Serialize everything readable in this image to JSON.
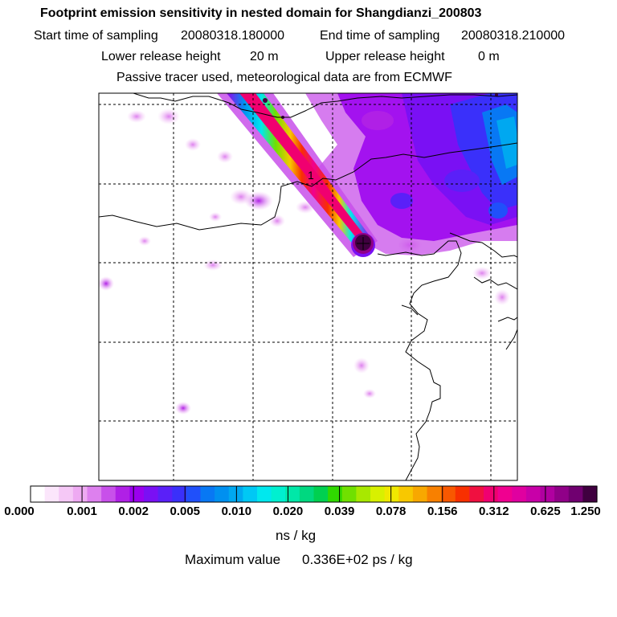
{
  "title": "Footprint emission sensitivity in nested domain for Shangdianzi_200803",
  "start_label": "Start time of sampling",
  "start_value": "20080318.180000",
  "end_label": "End time of sampling",
  "end_value": "20080318.210000",
  "lower_label": "Lower release height",
  "lower_value": "20 m",
  "upper_label": "Upper release height",
  "upper_value": "0 m",
  "tracer_note": "Passive tracer used, meteorological data are from ECMWF",
  "release_marker": "1",
  "colorbar": {
    "tick_labels": [
      "0.000",
      "0.001",
      "0.002",
      "0.005",
      "0.010",
      "0.020",
      "0.039",
      "0.078",
      "0.156",
      "0.312",
      "0.625",
      "1.250"
    ],
    "units": "ns / kg",
    "colors": [
      "#ffffff",
      "#fbe6fb",
      "#f5c8f6",
      "#eeaaf2",
      "#dd80ee",
      "#c850ea",
      "#b020e6",
      "#9a00ee",
      "#7a10f4",
      "#5a20f8",
      "#3a30fa",
      "#2050fa",
      "#0878f4",
      "#0090f0",
      "#00a8f0",
      "#00c8f4",
      "#00e8ee",
      "#00f0d0",
      "#00e8a8",
      "#00d880",
      "#00d050",
      "#30d800",
      "#70e000",
      "#a8e800",
      "#d8f000",
      "#f0e800",
      "#f8c800",
      "#f8a800",
      "#f88000",
      "#f85800",
      "#f83000",
      "#f01040",
      "#f00070",
      "#f00090",
      "#e000a0",
      "#c800a8",
      "#b000a0",
      "#900088",
      "#700070",
      "#400040"
    ]
  },
  "max_label": "Maximum value",
  "max_value": "0.336E+02 ps / kg"
}
